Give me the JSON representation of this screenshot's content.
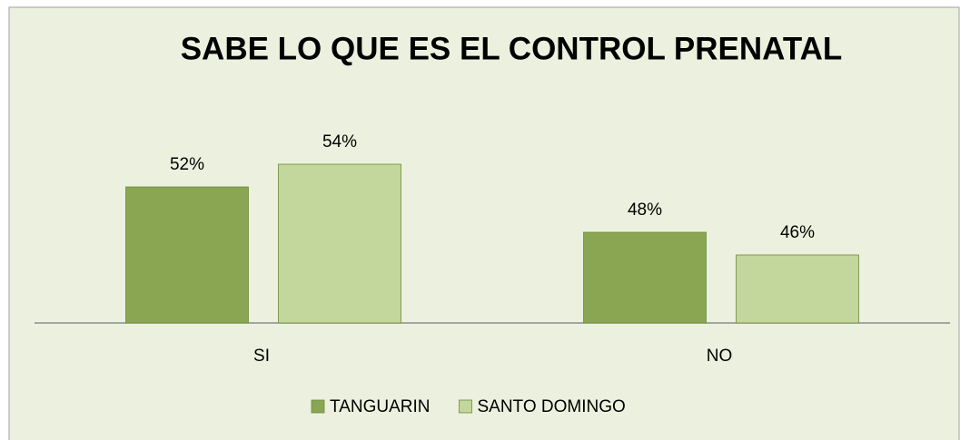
{
  "chart_data": {
    "type": "bar",
    "title": "SABE LO QUE ES EL CONTROL PRENATAL",
    "categories": [
      "SI",
      "NO"
    ],
    "series": [
      {
        "name": "TANGUARIN",
        "color": "#8aa652",
        "values": [
          52,
          48
        ],
        "value_labels": [
          "52%",
          "48%"
        ]
      },
      {
        "name": "SANTO DOMINGO",
        "color": "#c3d69b",
        "values": [
          54,
          46
        ],
        "value_labels": [
          "54%",
          "46%"
        ]
      }
    ],
    "ylim": [
      40,
      60
    ],
    "legend": "bottom"
  }
}
